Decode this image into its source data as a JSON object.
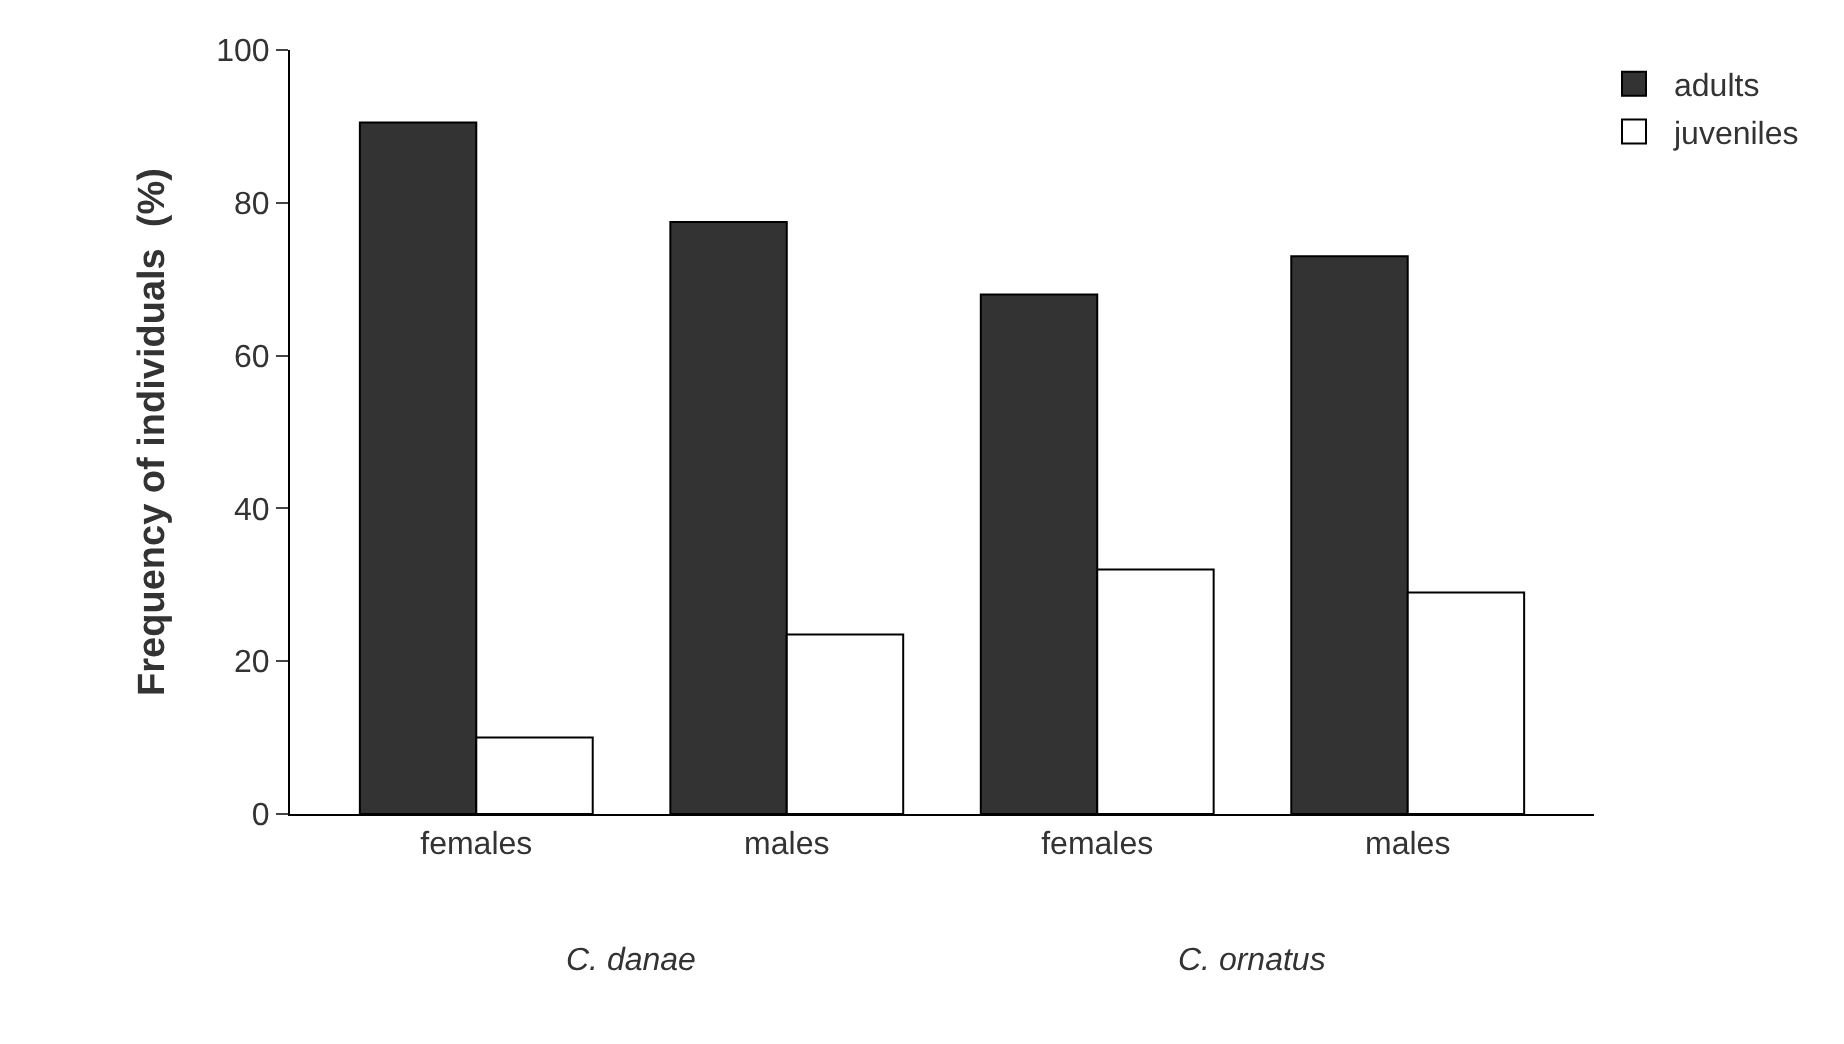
{
  "chart_data": {
    "type": "bar",
    "ylabel": "Frequency of individuals  (%)",
    "categories": [
      "females",
      "males",
      "females",
      "males"
    ],
    "series": [
      {
        "name": "adults",
        "color": "#333333",
        "values": [
          90.5,
          77.5,
          68,
          73
        ]
      },
      {
        "name": "juveniles",
        "color": "#ffffff",
        "values": [
          10,
          23.5,
          32,
          29
        ]
      }
    ],
    "ylim": [
      0,
      100
    ],
    "yticks": [
      0,
      20,
      40,
      60,
      80,
      100
    ],
    "grid": false,
    "legend": "top right",
    "annotations": [
      "C. danae",
      "C. ornatus"
    ]
  }
}
